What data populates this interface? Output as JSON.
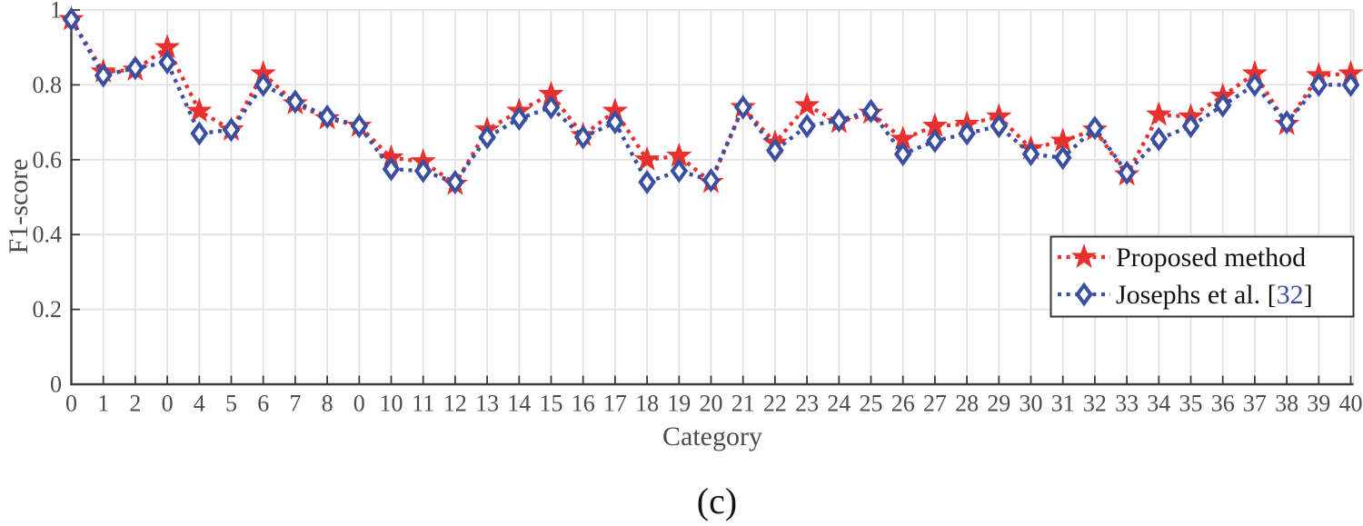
{
  "figure": {
    "caption": "(c)"
  },
  "colors": {
    "proposed_red": "#e8302e",
    "josephs_blue": "#3b4fa0",
    "citation": "#3b4fa0",
    "grid": "#e2e2e2",
    "axis": "#3c3c3c",
    "tick_text": "#4c4c4c",
    "legend_border": "#333333"
  },
  "legend": {
    "row1_label": "Proposed method",
    "row2_prefix": "Josephs et al. [",
    "row2_cite": "32",
    "row2_suffix": "]"
  },
  "chart_data": {
    "type": "line",
    "title": "",
    "xlabel": "Category",
    "ylabel": "F1-score",
    "ylim": [
      0,
      1
    ],
    "yticks": [
      0,
      0.2,
      0.4,
      0.6,
      0.8,
      1
    ],
    "ytick_labels": [
      "0",
      "0.2",
      "0.4",
      "0.6",
      "0.8",
      "1"
    ],
    "grid": true,
    "legend_position": "lower right",
    "categories": [
      "0",
      "1",
      "2",
      "0",
      "4",
      "5",
      "6",
      "7",
      "8",
      "0",
      "10",
      "11",
      "12",
      "13",
      "14",
      "15",
      "16",
      "17",
      "18",
      "19",
      "20",
      "21",
      "22",
      "23",
      "24",
      "25",
      "26",
      "27",
      "28",
      "29",
      "30",
      "31",
      "32",
      "33",
      "34",
      "35",
      "36",
      "37",
      "38",
      "39",
      "40"
    ],
    "series": [
      {
        "name": "Proposed method",
        "color": "#e8302e",
        "marker": "star",
        "line_style": "dotted",
        "values": [
          0.975,
          0.835,
          0.84,
          0.9,
          0.73,
          0.68,
          0.83,
          0.75,
          0.71,
          0.69,
          0.605,
          0.595,
          0.535,
          0.68,
          0.73,
          0.775,
          0.665,
          0.73,
          0.6,
          0.61,
          0.54,
          0.74,
          0.645,
          0.745,
          0.7,
          0.725,
          0.655,
          0.69,
          0.695,
          0.715,
          0.63,
          0.65,
          0.68,
          0.56,
          0.72,
          0.715,
          0.77,
          0.83,
          0.695,
          0.825,
          0.83
        ]
      },
      {
        "name": "Josephs et al. [32]",
        "color": "#3b4fa0",
        "marker": "diamond",
        "line_style": "dotted",
        "values": [
          0.975,
          0.825,
          0.845,
          0.86,
          0.67,
          0.68,
          0.8,
          0.755,
          0.715,
          0.69,
          0.575,
          0.57,
          0.54,
          0.66,
          0.71,
          0.74,
          0.66,
          0.7,
          0.54,
          0.57,
          0.545,
          0.74,
          0.625,
          0.69,
          0.705,
          0.73,
          0.615,
          0.65,
          0.67,
          0.69,
          0.615,
          0.605,
          0.685,
          0.565,
          0.655,
          0.69,
          0.745,
          0.8,
          0.7,
          0.8,
          0.8
        ]
      }
    ]
  }
}
